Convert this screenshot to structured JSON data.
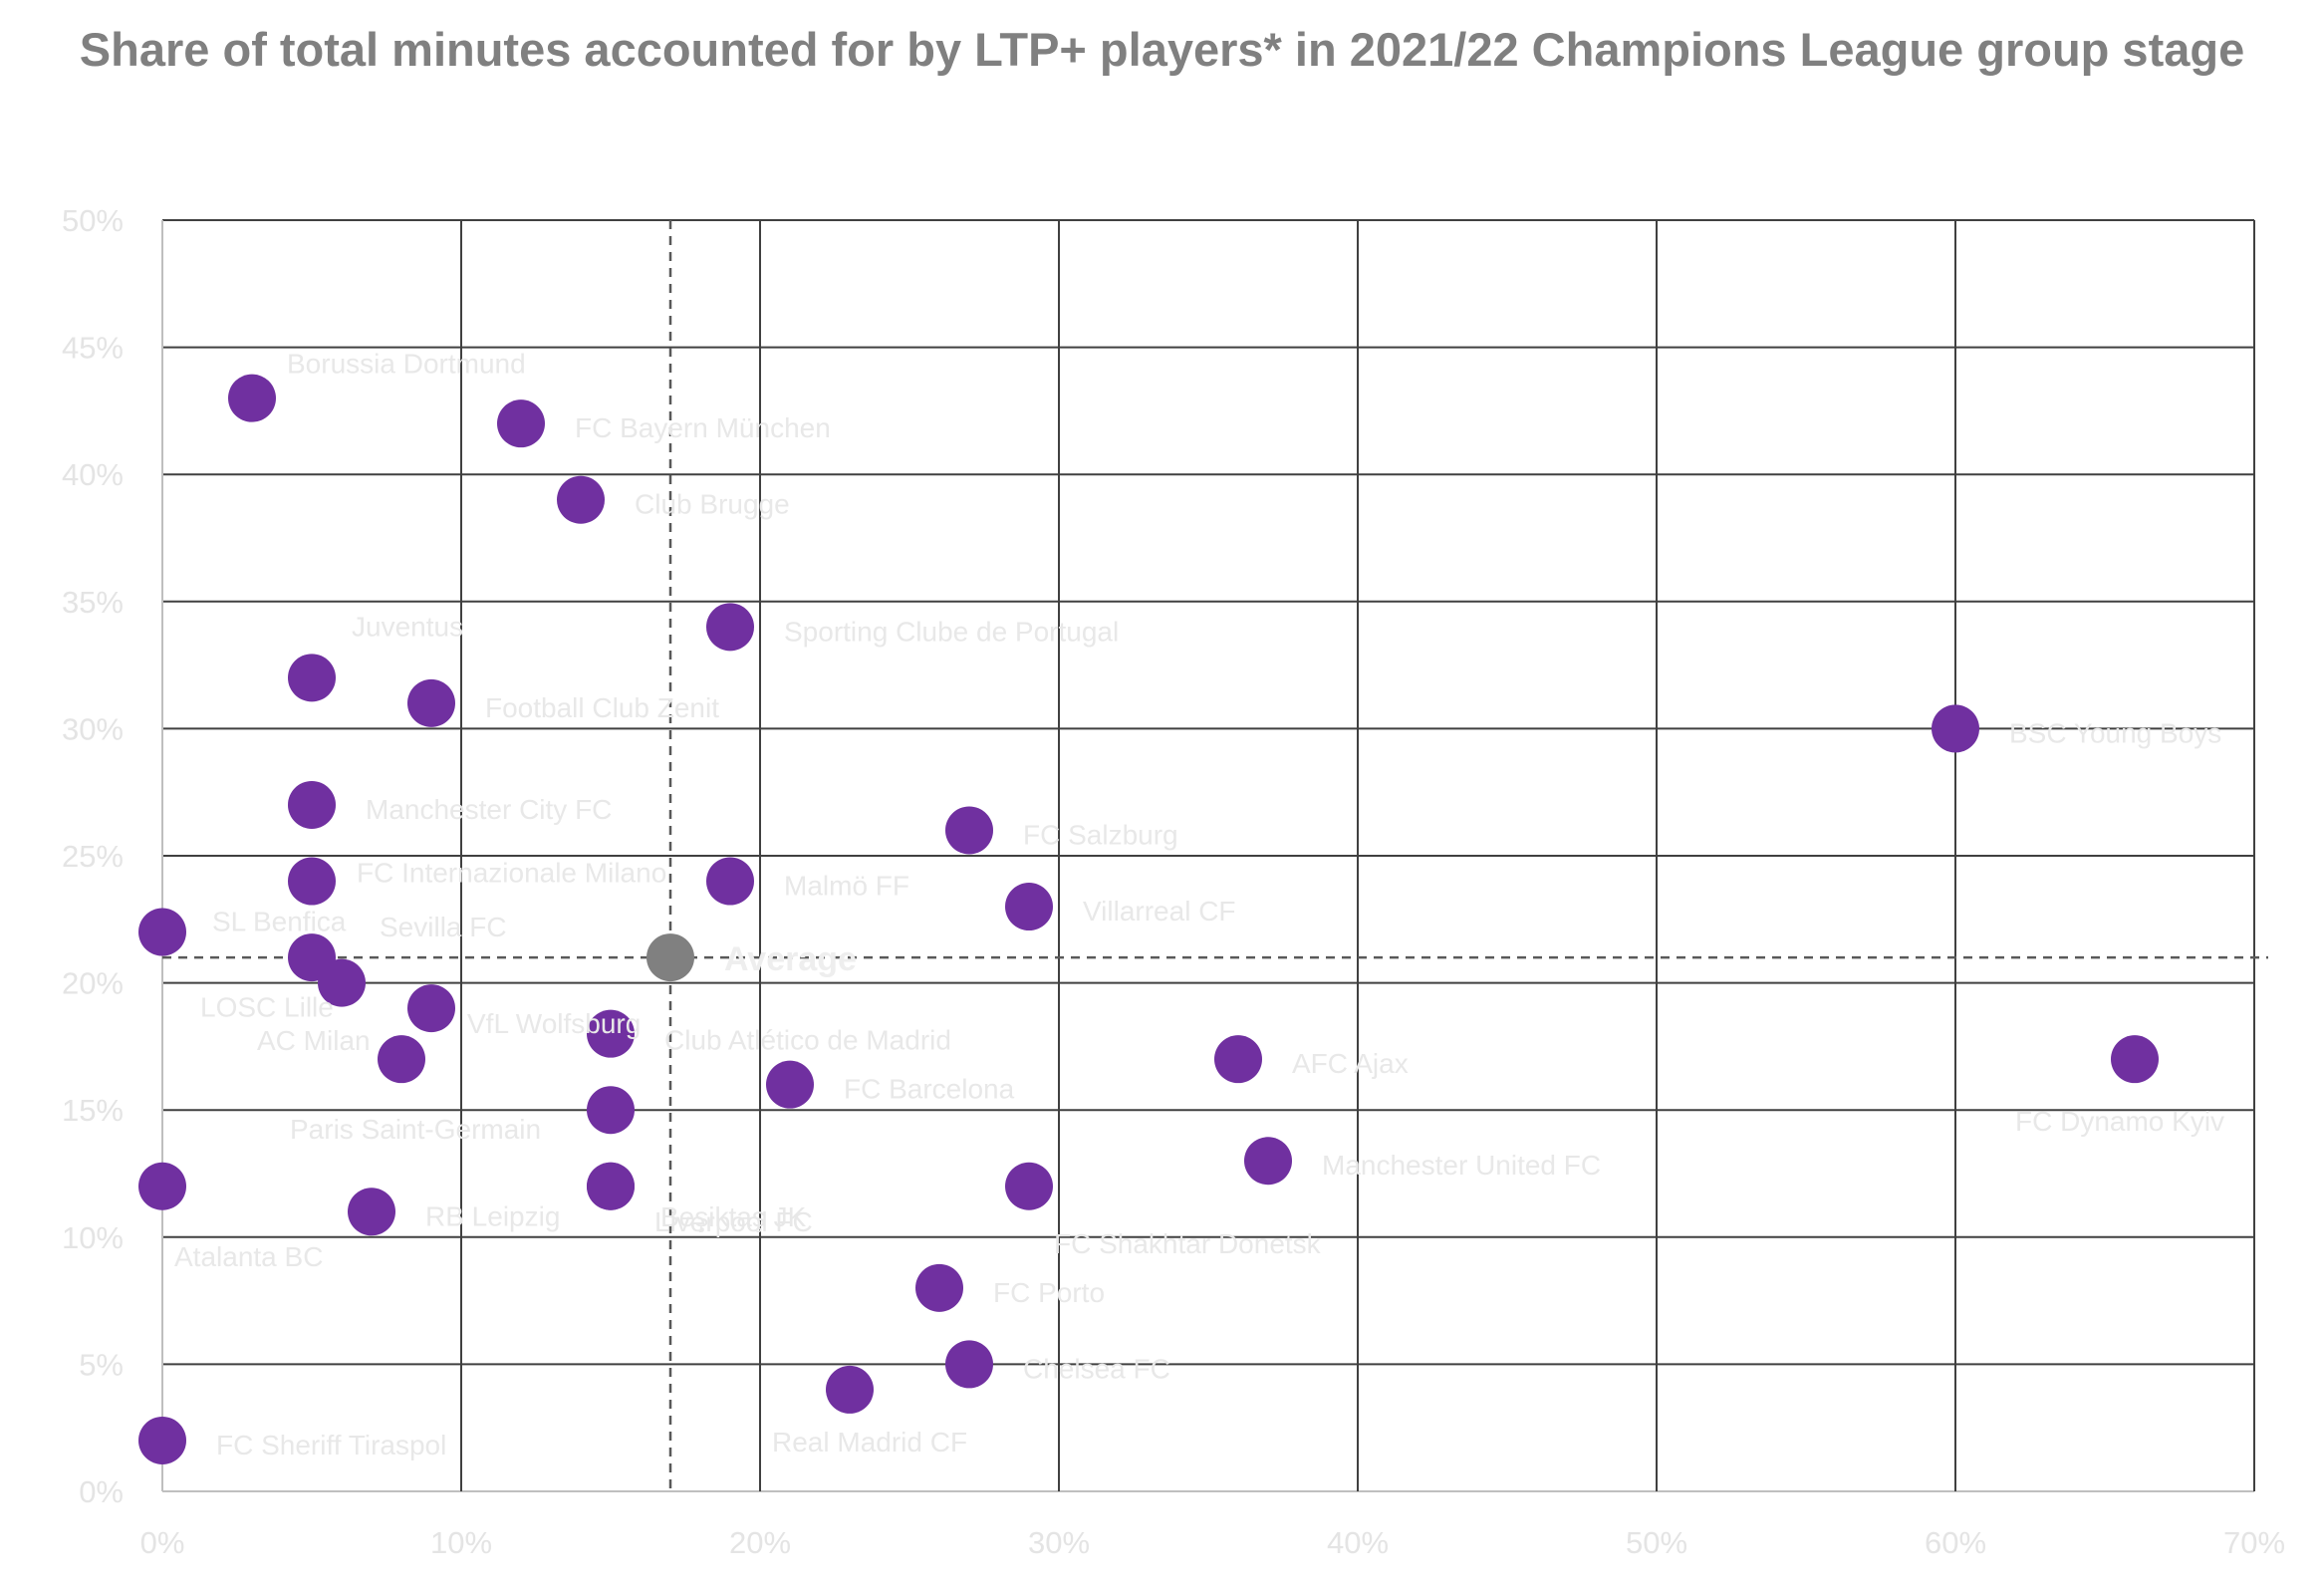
{
  "chart_data": {
    "type": "scatter",
    "title": "Share of total minutes accounted for by LTP+ players* in 2021/22 Champions League group stage",
    "xlabel": "",
    "ylabel": "",
    "xlim": [
      0,
      70
    ],
    "ylim": [
      0,
      50
    ],
    "x_ticks": [
      "0%",
      "10%",
      "20%",
      "30%",
      "40%",
      "50%",
      "60%",
      "70%"
    ],
    "y_ticks": [
      "0%",
      "5%",
      "10%",
      "15%",
      "20%",
      "25%",
      "30%",
      "35%",
      "40%",
      "45%",
      "50%"
    ],
    "grid": true,
    "legend": "none",
    "point_color": "#7030a0",
    "average_color": "#808080",
    "average": {
      "label": "Average",
      "x": 17,
      "y": 21
    },
    "points": [
      {
        "name": "Borussia Dortmund",
        "x": 3,
        "y": 43
      },
      {
        "name": "FC Bayern München",
        "x": 12,
        "y": 42
      },
      {
        "name": "Club Brugge",
        "x": 14,
        "y": 39
      },
      {
        "name": "Sporting Clube de Portugal",
        "x": 19,
        "y": 34
      },
      {
        "name": "Juventus",
        "x": 5,
        "y": 32
      },
      {
        "name": "Football Club Zenit",
        "x": 9,
        "y": 31
      },
      {
        "name": "BSC Young Boys",
        "x": 60,
        "y": 30
      },
      {
        "name": "Manchester City FC",
        "x": 5,
        "y": 27
      },
      {
        "name": "FC Salzburg",
        "x": 27,
        "y": 26
      },
      {
        "name": "FC Internazionale Milano",
        "x": 5,
        "y": 24
      },
      {
        "name": "Malmö FF",
        "x": 19,
        "y": 24
      },
      {
        "name": "Villarreal CF",
        "x": 29,
        "y": 23
      },
      {
        "name": "SL Benfica",
        "x": 0,
        "y": 22
      },
      {
        "name": "Sevilla FC",
        "x": 5,
        "y": 21
      },
      {
        "name": "LOSC Lille",
        "x": 6,
        "y": 20
      },
      {
        "name": "VfL Wolfsburg",
        "x": 9,
        "y": 19
      },
      {
        "name": "AC Milan",
        "x": 8,
        "y": 17
      },
      {
        "name": "Club Atlético de Madrid",
        "x": 15,
        "y": 18
      },
      {
        "name": "FC Barcelona",
        "x": 21,
        "y": 16
      },
      {
        "name": "AFC Ajax",
        "x": 36,
        "y": 17
      },
      {
        "name": "FC Dynamo Kyiv",
        "x": 66,
        "y": 17
      },
      {
        "name": "Paris Saint-Germain",
        "x": 15,
        "y": 15
      },
      {
        "name": "Liverpool FC",
        "x": 15,
        "y": 12
      },
      {
        "name": "Manchester United FC",
        "x": 37,
        "y": 13
      },
      {
        "name": "Atalanta BC",
        "x": 0,
        "y": 12
      },
      {
        "name": "RB Leipzig",
        "x": 7,
        "y": 11
      },
      {
        "name": "Beşiktaş JK",
        "x": 15,
        "y": 12
      },
      {
        "name": "FC Shakhtar Donetsk",
        "x": 29,
        "y": 12
      },
      {
        "name": "FC Porto",
        "x": 26,
        "y": 8
      },
      {
        "name": "Chelsea FC",
        "x": 27,
        "y": 5
      },
      {
        "name": "Real Madrid CF",
        "x": 23,
        "y": 4
      },
      {
        "name": "FC Sheriff Tiraspol",
        "x": 0,
        "y": 2
      }
    ]
  }
}
